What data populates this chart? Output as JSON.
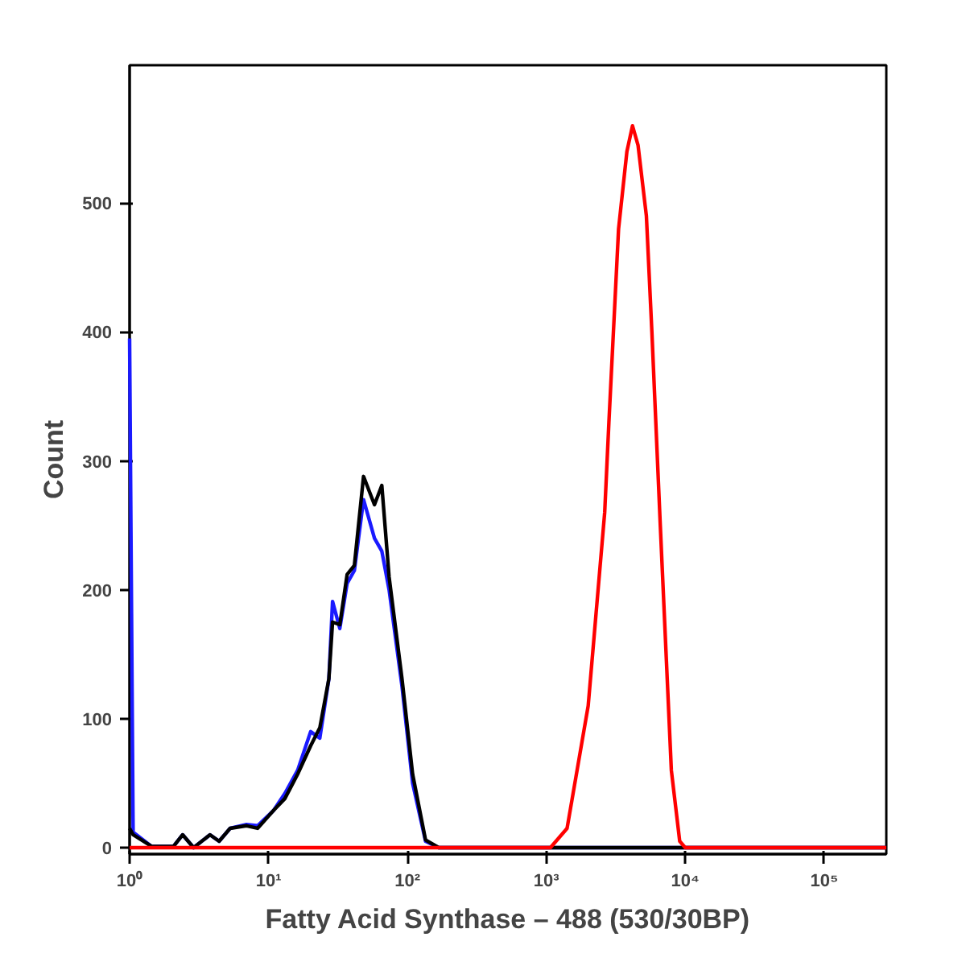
{
  "chart_data": {
    "type": "line",
    "xlabel": "Fatty Acid Synthase – 488 (530/30BP)",
    "ylabel": "Count",
    "log": "x",
    "grid": false,
    "marker": "none",
    "line_style": "solid",
    "xlim": [
      1,
      280000
    ],
    "ylim": [
      -5,
      607
    ],
    "xticks": [
      {
        "value": 1,
        "label": "10⁰"
      },
      {
        "value": 10,
        "label": "10¹"
      },
      {
        "value": 100,
        "label": "10²"
      },
      {
        "value": 1000,
        "label": "10³"
      },
      {
        "value": 10000,
        "label": "10⁴"
      },
      {
        "value": 100000,
        "label": "10⁵"
      }
    ],
    "yticks": [
      0,
      100,
      200,
      300,
      400,
      500
    ],
    "series": [
      {
        "color": "#1a1aff",
        "x": [
          1,
          1.06,
          1.44,
          2.07,
          2.41,
          2.89,
          3.79,
          4.41,
          5.29,
          6.95,
          8.34,
          10.9,
          13.1,
          16.2,
          20.1,
          23.4,
          27.2,
          28.9,
          32.6,
          36.8,
          41.5,
          48.3,
          57.9,
          65.4,
          73.8,
          91.4,
          109,
          135,
          168,
          280000
        ],
        "values": [
          395,
          12,
          1,
          1,
          10,
          0,
          10,
          5,
          15,
          18,
          17,
          29,
          42,
          60,
          90,
          85,
          131,
          191,
          170,
          205,
          215,
          270,
          240,
          230,
          200,
          125,
          50,
          5,
          0,
          0
        ]
      },
      {
        "color": "#000000",
        "x": [
          1,
          1.06,
          1.44,
          2.07,
          2.41,
          2.89,
          3.79,
          4.41,
          5.29,
          6.95,
          8.34,
          10.9,
          13.1,
          16.2,
          20.1,
          23.4,
          27.2,
          28.9,
          32.6,
          36.8,
          41.5,
          48.3,
          57.9,
          65.4,
          73.8,
          91.4,
          109,
          135,
          168,
          280000
        ],
        "values": [
          15,
          10,
          1,
          1,
          10,
          0,
          10,
          5,
          15,
          17,
          15,
          29,
          38,
          57,
          79,
          93,
          131,
          175,
          173,
          212,
          219,
          288,
          266,
          281,
          210,
          131,
          57,
          6,
          0,
          0
        ]
      },
      {
        "color": "#ff0000",
        "x": [
          1,
          1070,
          1410,
          2000,
          2630,
          2820,
          3310,
          3800,
          4170,
          4570,
          5250,
          5750,
          6610,
          7940,
          9120,
          10000,
          280000
        ],
        "values": [
          0,
          0,
          15,
          110,
          260,
          330,
          480,
          540,
          560,
          545,
          490,
          400,
          250,
          60,
          5,
          0,
          0
        ]
      }
    ]
  }
}
